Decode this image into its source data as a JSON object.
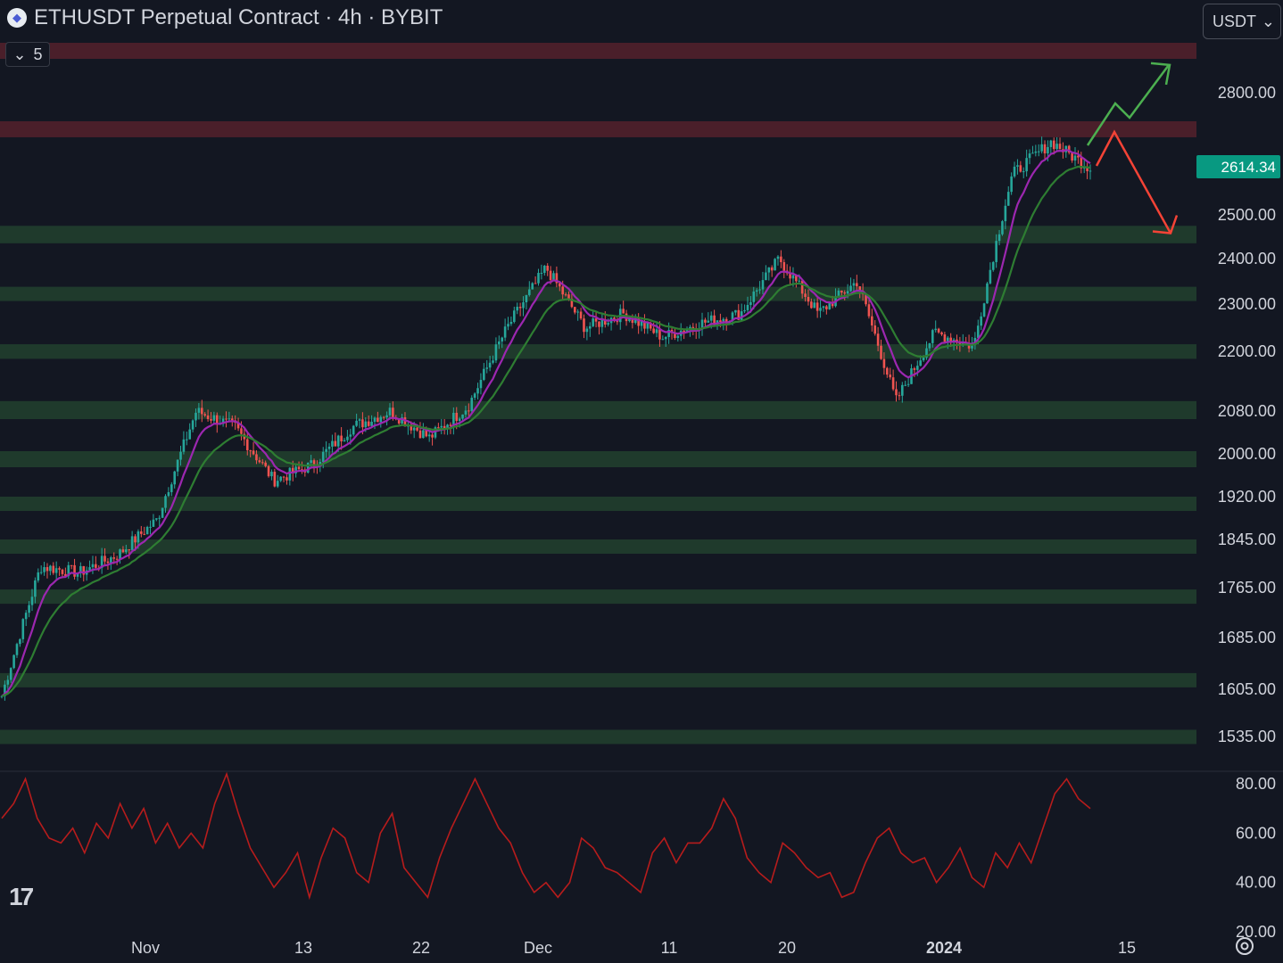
{
  "header": {
    "title": "ETHUSDT Perpetual Contract · 4h · BYBIT",
    "collapse_count": "5",
    "unit": "USDT"
  },
  "last_price": "2614.34",
  "colors": {
    "background": "#131722",
    "support_zone": "#1f3a2c",
    "resistance_zone": "#4a1f2a",
    "candle_up": "#26a69a",
    "candle_down": "#ef5350",
    "ema_fast": "#9c27b0",
    "ema_slow": "#2e7d32",
    "rsi": "#b71c1c",
    "arrow_up": "#4caf50",
    "arrow_down": "#f44336",
    "price_label": "#089981"
  },
  "icons": [
    "ethereum-logo-icon",
    "chevron-down-icon",
    "tradingview-logo-icon",
    "gear-icon"
  ],
  "chart_data": [
    {
      "type": "candlestick",
      "symbol": "ETHUSDT",
      "interval": "4h",
      "y_ticks": [
        "2800.00",
        "2500.00",
        "2400.00",
        "2300.00",
        "2200.00",
        "2080.00",
        "2000.00",
        "1920.00",
        "1845.00",
        "1765.00",
        "1685.00",
        "1605.00",
        "1535.00"
      ],
      "x_ticks": [
        "Nov",
        "13",
        "22",
        "Dec",
        "11",
        "20",
        "2024",
        "15"
      ],
      "resistance_zones": [
        [
          2900,
          2930
        ],
        [
          2695,
          2730
        ]
      ],
      "support_zones": [
        [
          2435,
          2475
        ],
        [
          2310,
          2338
        ],
        [
          2185,
          2215
        ],
        [
          2065,
          2100
        ],
        [
          1975,
          2005
        ],
        [
          1895,
          1920
        ],
        [
          1822,
          1845
        ],
        [
          1740,
          1762
        ],
        [
          1610,
          1630
        ],
        [
          1530,
          1545
        ]
      ],
      "price_path": {
        "dates": [
          "Oct 26",
          "Oct 29",
          "Nov 1",
          "Nov 6",
          "Nov 9",
          "Nov 10",
          "Nov 13",
          "Nov 15",
          "Nov 19",
          "Nov 22",
          "Nov 25",
          "Nov 29",
          "Dec 2",
          "Dec 5",
          "Dec 9",
          "Dec 11",
          "Dec 14",
          "Dec 18",
          "Dec 22",
          "Dec 26",
          "Dec 27",
          "Dec 31",
          "Jan 2",
          "Jan 3",
          "Jan 6",
          "Jan 8",
          "Jan 10",
          "Jan 11",
          "Jan 12"
        ],
        "close": [
          1595,
          1800,
          1790,
          1820,
          1880,
          2080,
          2050,
          1950,
          1980,
          2050,
          2080,
          2030,
          2090,
          2250,
          2380,
          2250,
          2280,
          2230,
          2260,
          2280,
          2400,
          2280,
          2350,
          2100,
          2240,
          2210,
          2600,
          2680,
          2614
        ]
      },
      "indicators": [
        "EMA fast",
        "EMA slow"
      ],
      "projection": {
        "bullish_target": 2900,
        "bearish_target": 2450
      }
    },
    {
      "type": "line",
      "indicator": "RSI",
      "y_ticks": [
        "80.00",
        "60.00",
        "40.00",
        "20.00"
      ],
      "ylim": [
        20,
        80
      ],
      "values": [
        66,
        72,
        82,
        66,
        58,
        56,
        62,
        52,
        64,
        58,
        72,
        62,
        70,
        56,
        64,
        54,
        60,
        54,
        72,
        84,
        68,
        54,
        46,
        38,
        44,
        52,
        34,
        50,
        62,
        58,
        44,
        40,
        60,
        68,
        46,
        40,
        34,
        50,
        62,
        72,
        82,
        72,
        62,
        56,
        44,
        36,
        40,
        34,
        40,
        58,
        54,
        46,
        44,
        40,
        36,
        52,
        58,
        48,
        56,
        56,
        62,
        74,
        66,
        50,
        44,
        40,
        56,
        52,
        46,
        42,
        44,
        34,
        36,
        48,
        58,
        62,
        52,
        48,
        50,
        40,
        46,
        54,
        42,
        38,
        52,
        46,
        56,
        48,
        62,
        76,
        82,
        74,
        70
      ]
    }
  ]
}
